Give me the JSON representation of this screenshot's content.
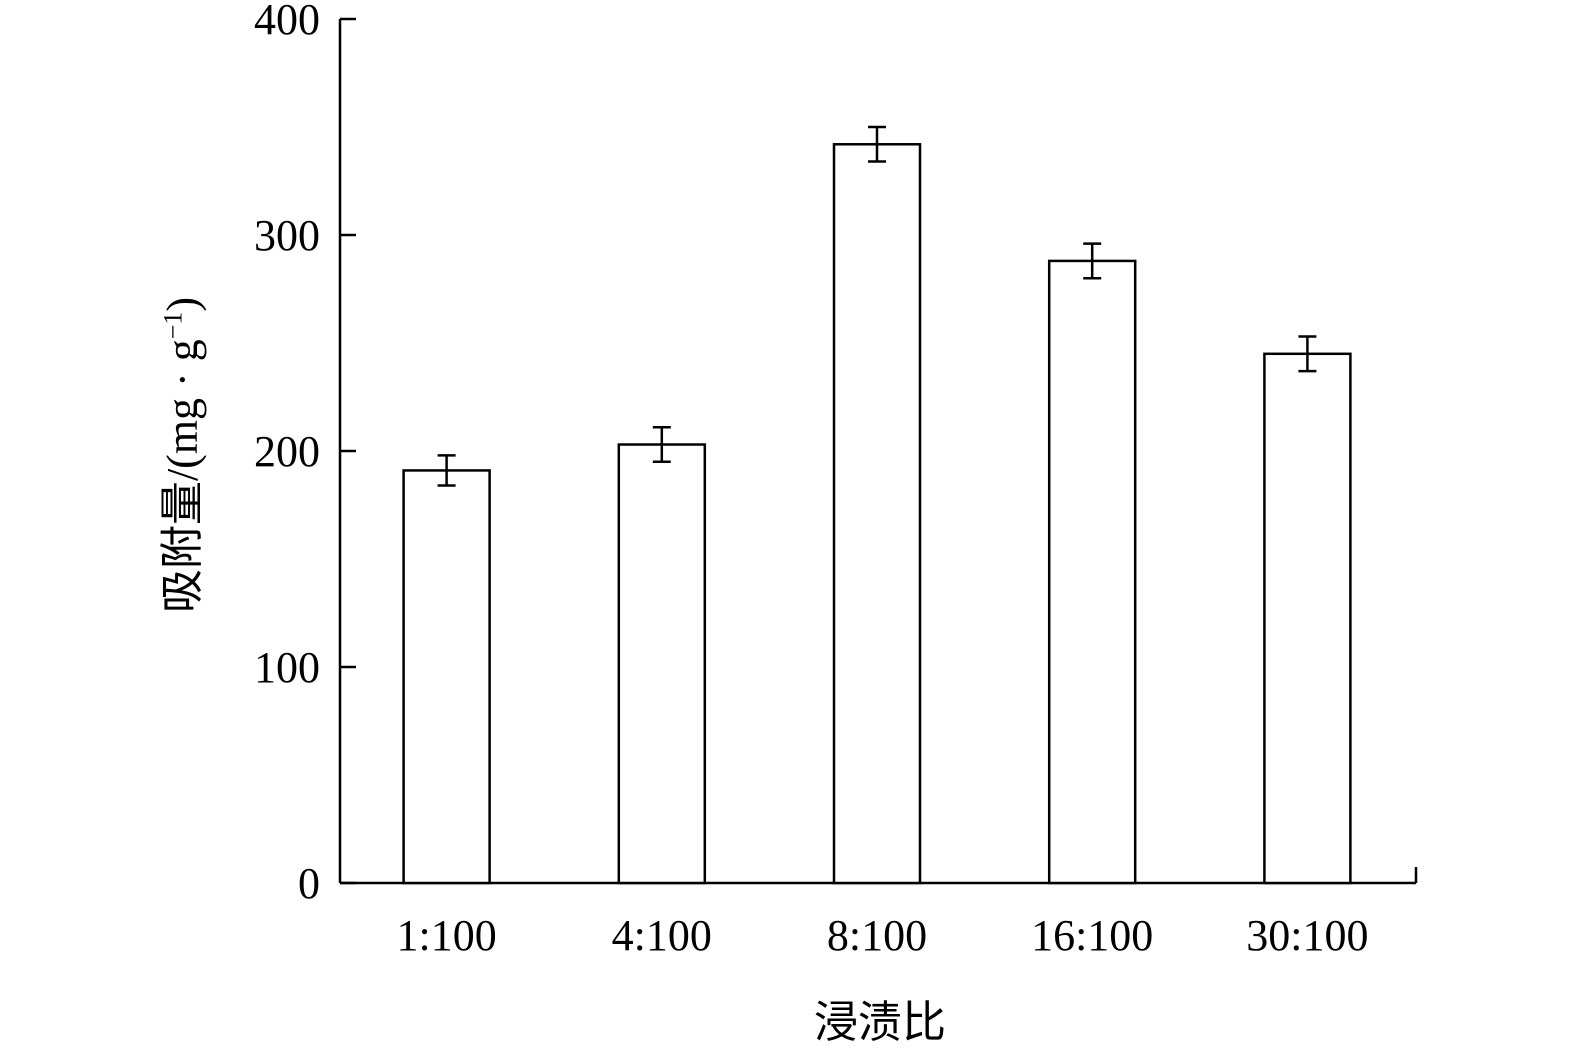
{
  "chart_data": {
    "type": "bar",
    "categories": [
      "1:100",
      "4:100",
      "8:100",
      "16:100",
      "30:100"
    ],
    "values": [
      191,
      203,
      342,
      288,
      245
    ],
    "error": [
      7,
      8,
      8,
      8,
      8
    ],
    "xlabel": "浸渍比",
    "ylabel": {
      "main": "吸附量/(mg · g",
      "sup": "−1",
      "end": ")"
    },
    "ylim": [
      0,
      400
    ],
    "yticks": [
      0,
      100,
      200,
      300,
      400
    ],
    "grid": false,
    "bar_fill": "#ffffff",
    "bar_stroke": "#000000"
  }
}
